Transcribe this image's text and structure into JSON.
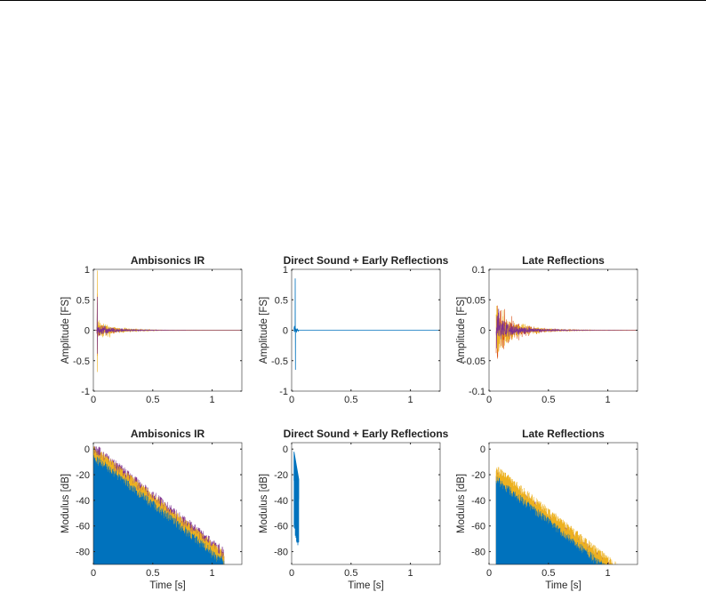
{
  "colors": {
    "series_1": "#0072BD",
    "series_2": "#D95319",
    "series_3": "#EDB120",
    "series_4": "#7E2F8E",
    "axes": "#262626"
  },
  "chart_data": [
    {
      "type": "line",
      "title": "Ambisonics IR",
      "xlabel": "",
      "ylabel": "Amplitude [FS]",
      "xlim": [
        0,
        1.25
      ],
      "ylim": [
        -1,
        1
      ],
      "xticks": [
        0,
        0.5,
        1
      ],
      "xticklabels": [
        "0",
        "0.5",
        "1"
      ],
      "yticks": [
        -1,
        -0.5,
        0,
        0.5,
        1
      ],
      "yticklabels": [
        "-1",
        "-0.5",
        "0",
        "0.5",
        "1"
      ],
      "grid": false,
      "series": [
        {
          "color": "series_1",
          "peak_time": 0.03,
          "peak": 0.45,
          "decay_s": 0.15
        },
        {
          "color": "series_2",
          "peak_time": 0.03,
          "peak": 0.6,
          "decay_s": 0.15
        },
        {
          "color": "series_3",
          "peak_time": 0.03,
          "peak": 0.98,
          "decay_s": 0.15
        },
        {
          "color": "series_4",
          "peak_time": 0.03,
          "peak": 0.55,
          "decay_s": 0.15
        }
      ]
    },
    {
      "type": "line",
      "title": "Direct Sound + Early Reflections",
      "xlabel": "",
      "ylabel": "Amplitude [FS]",
      "xlim": [
        0,
        1.25
      ],
      "ylim": [
        -1,
        1
      ],
      "xticks": [
        0,
        0.5,
        1
      ],
      "xticklabels": [
        "0",
        "0.5",
        "1"
      ],
      "yticks": [
        -1,
        -0.5,
        0,
        0.5,
        1
      ],
      "yticklabels": [
        "-1",
        "-0.5",
        "0",
        "0.5",
        "1"
      ],
      "grid": false,
      "series": [
        {
          "color": "series_1",
          "peak_time": 0.03,
          "peak": 0.85,
          "trough": -0.65,
          "end_time": 0.06
        }
      ]
    },
    {
      "type": "line",
      "title": "Late Reflections",
      "xlabel": "",
      "ylabel": "Amplitude [FS]",
      "xlim": [
        0,
        1.25
      ],
      "ylim": [
        -0.1,
        0.1
      ],
      "xticks": [
        0,
        0.5,
        1
      ],
      "xticklabels": [
        "0",
        "0.5",
        "1"
      ],
      "yticks": [
        -0.1,
        -0.05,
        0,
        0.05,
        0.1
      ],
      "yticklabels": [
        "-0.1",
        "-0.05",
        "0",
        "0.05",
        "0.1"
      ],
      "grid": false,
      "series": [
        {
          "color": "series_2",
          "start_time": 0.06,
          "peak": 0.07,
          "decay_s": 0.17
        },
        {
          "color": "series_3",
          "start_time": 0.06,
          "peak": 0.065,
          "decay_s": 0.17
        },
        {
          "color": "series_4",
          "start_time": 0.06,
          "peak": 0.04,
          "decay_s": 0.17
        }
      ]
    },
    {
      "type": "line",
      "title": "Ambisonics IR",
      "xlabel": "Time [s]",
      "ylabel": "Modulus [dB]",
      "xlim": [
        0,
        1.25
      ],
      "ylim": [
        -90,
        5
      ],
      "xticks": [
        0,
        0.5,
        1
      ],
      "xticklabels": [
        "0",
        "0.5",
        "1"
      ],
      "yticks": [
        -80,
        -60,
        -40,
        -20,
        0
      ],
      "yticklabels": [
        "-80",
        "-60",
        "-40",
        "-20",
        "0"
      ],
      "grid": false,
      "series": [
        {
          "color": "series_4",
          "start_time": 0.0,
          "start_db": 0,
          "slope_db_per_s": -75,
          "end_time": 1.1
        },
        {
          "color": "series_3",
          "start_time": 0.0,
          "start_db": -2,
          "slope_db_per_s": -75,
          "end_time": 1.1
        },
        {
          "color": "series_1",
          "start_time": 0.0,
          "start_db": -8,
          "slope_db_per_s": -75,
          "end_time": 1.1
        }
      ]
    },
    {
      "type": "line",
      "title": "Direct Sound + Early Reflections",
      "xlabel": "Time [s]",
      "ylabel": "Modulus [dB]",
      "xlim": [
        0,
        1.25
      ],
      "ylim": [
        -90,
        5
      ],
      "xticks": [
        0,
        0.5,
        1
      ],
      "xticklabels": [
        "0",
        "0.5",
        "1"
      ],
      "yticks": [
        -80,
        -60,
        -40,
        -20,
        0
      ],
      "yticklabels": [
        "-80",
        "-60",
        "-40",
        "-20",
        "0"
      ],
      "grid": false,
      "series": [
        {
          "color": "series_1",
          "start_time": 0.02,
          "end_time": 0.06,
          "start_db": -2,
          "end_db": -88
        }
      ]
    },
    {
      "type": "line",
      "title": "Late Reflections",
      "xlabel": "Time [s]",
      "ylabel": "Modulus [dB]",
      "xlim": [
        0,
        1.25
      ],
      "ylim": [
        -90,
        5
      ],
      "xticks": [
        0,
        0.5,
        1
      ],
      "xticklabels": [
        "0",
        "0.5",
        "1"
      ],
      "yticks": [
        -80,
        -60,
        -40,
        -20,
        0
      ],
      "yticklabels": [
        "-80",
        "-60",
        "-40",
        "-20",
        "0"
      ],
      "grid": false,
      "series": [
        {
          "color": "series_4",
          "start_time": 0.06,
          "start_db": -22,
          "slope_db_per_s": -75,
          "end_time": 1.1
        },
        {
          "color": "series_3",
          "start_time": 0.06,
          "start_db": -18,
          "slope_db_per_s": -75,
          "end_time": 1.1
        },
        {
          "color": "series_1",
          "start_time": 0.06,
          "start_db": -26,
          "slope_db_per_s": -75,
          "end_time": 1.1
        }
      ]
    }
  ]
}
